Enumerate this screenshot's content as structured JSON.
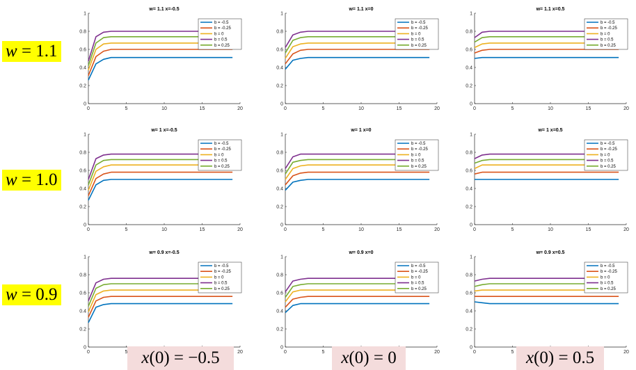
{
  "row_labels": [
    {
      "var": "w",
      "value": "1.1"
    },
    {
      "var": "w",
      "value": "1.0"
    },
    {
      "var": "w",
      "value": "0.9"
    }
  ],
  "col_labels": [
    {
      "var": "x",
      "arg": "0",
      "value": "−0.5"
    },
    {
      "var": "x",
      "arg": "0",
      "value": "0"
    },
    {
      "var": "x",
      "arg": "0",
      "value": "0.5"
    }
  ],
  "series_colors": {
    "b = -0.5": "#0072BD",
    "b = -0.25": "#D95319",
    "b = 0": "#EDB120",
    "b = 0.5": "#7E2F8E",
    "b = 0.25": "#77AC30"
  },
  "chart_data": [
    {
      "type": "line",
      "title": "w= 1.1 x=-0.5",
      "xlim": [
        0,
        20
      ],
      "ylim": [
        0,
        1
      ],
      "xticks": [
        "0",
        "5",
        "10",
        "15",
        "20"
      ],
      "yticks": [
        "0",
        "0.2",
        "0.4",
        "0.6",
        "0.8",
        "1"
      ],
      "x": [
        0,
        1,
        2,
        3,
        4,
        19
      ],
      "legend": "top-right",
      "series": [
        {
          "name": "b = -0.5",
          "values": [
            0.26,
            0.44,
            0.49,
            0.51,
            0.51,
            0.51
          ]
        },
        {
          "name": "b = -0.25",
          "values": [
            0.31,
            0.52,
            0.58,
            0.6,
            0.6,
            0.6
          ]
        },
        {
          "name": "b = 0",
          "values": [
            0.37,
            0.6,
            0.66,
            0.67,
            0.67,
            0.67
          ]
        },
        {
          "name": "b = 0.5",
          "values": [
            0.47,
            0.74,
            0.79,
            0.8,
            0.8,
            0.8
          ]
        },
        {
          "name": "b = 0.25",
          "values": [
            0.42,
            0.67,
            0.73,
            0.74,
            0.74,
            0.74
          ]
        }
      ]
    },
    {
      "type": "line",
      "title": "w= 1.1 x=0",
      "xlim": [
        0,
        20
      ],
      "ylim": [
        0,
        1
      ],
      "xticks": [
        "0",
        "5",
        "10",
        "15",
        "20"
      ],
      "yticks": [
        "0",
        "0.2",
        "0.4",
        "0.6",
        "0.8",
        "1"
      ],
      "x": [
        0,
        1,
        2,
        3,
        4,
        19
      ],
      "legend": "top-right",
      "series": [
        {
          "name": "b = -0.5",
          "values": [
            0.38,
            0.48,
            0.5,
            0.51,
            0.51,
            0.51
          ]
        },
        {
          "name": "b = -0.25",
          "values": [
            0.44,
            0.55,
            0.59,
            0.6,
            0.6,
            0.6
          ]
        },
        {
          "name": "b = 0",
          "values": [
            0.5,
            0.63,
            0.66,
            0.67,
            0.67,
            0.67
          ]
        },
        {
          "name": "b = 0.5",
          "values": [
            0.62,
            0.76,
            0.79,
            0.8,
            0.8,
            0.8
          ]
        },
        {
          "name": "b = 0.25",
          "values": [
            0.56,
            0.7,
            0.73,
            0.74,
            0.74,
            0.74
          ]
        }
      ]
    },
    {
      "type": "line",
      "title": "w= 1.1 x=0.5",
      "xlim": [
        0,
        20
      ],
      "ylim": [
        0,
        1
      ],
      "xticks": [
        "0",
        "5",
        "10",
        "15",
        "20"
      ],
      "yticks": [
        "0",
        "0.2",
        "0.4",
        "0.6",
        "0.8",
        "1"
      ],
      "x": [
        0,
        1,
        2,
        3,
        4,
        19
      ],
      "legend": "top-right",
      "series": [
        {
          "name": "b = -0.5",
          "values": [
            0.5,
            0.51,
            0.51,
            0.51,
            0.51,
            0.51
          ]
        },
        {
          "name": "b = -0.25",
          "values": [
            0.56,
            0.59,
            0.6,
            0.6,
            0.6,
            0.6
          ]
        },
        {
          "name": "b = 0",
          "values": [
            0.62,
            0.66,
            0.67,
            0.67,
            0.67,
            0.67
          ]
        },
        {
          "name": "b = 0.5",
          "values": [
            0.73,
            0.79,
            0.8,
            0.8,
            0.8,
            0.8
          ]
        },
        {
          "name": "b = 0.25",
          "values": [
            0.68,
            0.73,
            0.74,
            0.74,
            0.74,
            0.74
          ]
        }
      ]
    },
    {
      "type": "line",
      "title": "w= 1 x=-0.5",
      "xlim": [
        0,
        20
      ],
      "ylim": [
        0,
        1
      ],
      "xticks": [
        "0",
        "5",
        "10",
        "15",
        "20"
      ],
      "yticks": [
        "0",
        "0.2",
        "0.4",
        "0.6",
        "0.8",
        "1"
      ],
      "x": [
        0,
        1,
        2,
        3,
        4,
        19
      ],
      "legend": "top-right",
      "series": [
        {
          "name": "b = -0.5",
          "values": [
            0.27,
            0.44,
            0.49,
            0.5,
            0.5,
            0.5
          ]
        },
        {
          "name": "b = -0.25",
          "values": [
            0.32,
            0.51,
            0.56,
            0.58,
            0.58,
            0.58
          ]
        },
        {
          "name": "b = 0",
          "values": [
            0.38,
            0.59,
            0.64,
            0.66,
            0.66,
            0.66
          ]
        },
        {
          "name": "b = 0.5",
          "values": [
            0.5,
            0.73,
            0.77,
            0.78,
            0.78,
            0.78
          ]
        },
        {
          "name": "b = 0.25",
          "values": [
            0.44,
            0.66,
            0.71,
            0.72,
            0.72,
            0.72
          ]
        }
      ]
    },
    {
      "type": "line",
      "title": "w= 1 x=0",
      "xlim": [
        0,
        20
      ],
      "ylim": [
        0,
        1
      ],
      "xticks": [
        "0",
        "5",
        "10",
        "15",
        "20"
      ],
      "yticks": [
        "0",
        "0.2",
        "0.4",
        "0.6",
        "0.8",
        "1"
      ],
      "x": [
        0,
        1,
        2,
        3,
        4,
        19
      ],
      "legend": "top-right",
      "series": [
        {
          "name": "b = -0.5",
          "values": [
            0.38,
            0.47,
            0.49,
            0.5,
            0.5,
            0.5
          ]
        },
        {
          "name": "b = -0.25",
          "values": [
            0.44,
            0.54,
            0.57,
            0.58,
            0.58,
            0.58
          ]
        },
        {
          "name": "b = 0",
          "values": [
            0.5,
            0.62,
            0.65,
            0.66,
            0.66,
            0.66
          ]
        },
        {
          "name": "b = 0.5",
          "values": [
            0.62,
            0.75,
            0.78,
            0.78,
            0.78,
            0.78
          ]
        },
        {
          "name": "b = 0.25",
          "values": [
            0.56,
            0.69,
            0.71,
            0.72,
            0.72,
            0.72
          ]
        }
      ]
    },
    {
      "type": "line",
      "title": "w= 1 x=0.5",
      "xlim": [
        0,
        20
      ],
      "ylim": [
        0,
        1
      ],
      "xticks": [
        "0",
        "5",
        "10",
        "15",
        "20"
      ],
      "yticks": [
        "0",
        "0.2",
        "0.4",
        "0.6",
        "0.8",
        "1"
      ],
      "x": [
        0,
        1,
        2,
        3,
        4,
        19
      ],
      "legend": "top-right",
      "series": [
        {
          "name": "b = -0.5",
          "values": [
            0.5,
            0.5,
            0.5,
            0.5,
            0.5,
            0.5
          ]
        },
        {
          "name": "b = -0.25",
          "values": [
            0.56,
            0.58,
            0.58,
            0.58,
            0.58,
            0.58
          ]
        },
        {
          "name": "b = 0",
          "values": [
            0.62,
            0.66,
            0.66,
            0.66,
            0.66,
            0.66
          ]
        },
        {
          "name": "b = 0.5",
          "values": [
            0.73,
            0.77,
            0.78,
            0.78,
            0.78,
            0.78
          ]
        },
        {
          "name": "b = 0.25",
          "values": [
            0.68,
            0.71,
            0.72,
            0.72,
            0.72,
            0.72
          ]
        }
      ]
    },
    {
      "type": "line",
      "title": "w= 0.9 x=-0.5",
      "xlim": [
        0,
        20
      ],
      "ylim": [
        0,
        1
      ],
      "xticks": [
        "0",
        "5",
        "10",
        "15",
        "20"
      ],
      "yticks": [
        "0",
        "0.2",
        "0.4",
        "0.6",
        "0.8",
        "1"
      ],
      "x": [
        0,
        1,
        2,
        3,
        4,
        19
      ],
      "legend": "top-right",
      "series": [
        {
          "name": "b = -0.5",
          "values": [
            0.27,
            0.44,
            0.47,
            0.48,
            0.48,
            0.48
          ]
        },
        {
          "name": "b = -0.25",
          "values": [
            0.33,
            0.51,
            0.55,
            0.56,
            0.56,
            0.56
          ]
        },
        {
          "name": "b = 0",
          "values": [
            0.39,
            0.58,
            0.62,
            0.63,
            0.63,
            0.63
          ]
        },
        {
          "name": "b = 0.5",
          "values": [
            0.51,
            0.71,
            0.75,
            0.76,
            0.76,
            0.76
          ]
        },
        {
          "name": "b = 0.25",
          "values": [
            0.45,
            0.65,
            0.69,
            0.7,
            0.7,
            0.7
          ]
        }
      ]
    },
    {
      "type": "line",
      "title": "w= 0.9 x=0",
      "xlim": [
        0,
        20
      ],
      "ylim": [
        0,
        1
      ],
      "xticks": [
        "0",
        "5",
        "10",
        "15",
        "20"
      ],
      "yticks": [
        "0",
        "0.2",
        "0.4",
        "0.6",
        "0.8",
        "1"
      ],
      "x": [
        0,
        1,
        2,
        3,
        4,
        19
      ],
      "legend": "top-right",
      "series": [
        {
          "name": "b = -0.5",
          "values": [
            0.38,
            0.46,
            0.48,
            0.48,
            0.48,
            0.48
          ]
        },
        {
          "name": "b = -0.25",
          "values": [
            0.44,
            0.53,
            0.55,
            0.56,
            0.56,
            0.56
          ]
        },
        {
          "name": "b = 0",
          "values": [
            0.5,
            0.61,
            0.63,
            0.63,
            0.63,
            0.63
          ]
        },
        {
          "name": "b = 0.5",
          "values": [
            0.61,
            0.73,
            0.75,
            0.76,
            0.76,
            0.76
          ]
        },
        {
          "name": "b = 0.25",
          "values": [
            0.55,
            0.67,
            0.69,
            0.7,
            0.7,
            0.7
          ]
        }
      ]
    },
    {
      "type": "line",
      "title": "w= 0.9 x=0.5",
      "xlim": [
        0,
        20
      ],
      "ylim": [
        0,
        1
      ],
      "xticks": [
        "0",
        "5",
        "10",
        "15",
        "20"
      ],
      "yticks": [
        "0",
        "0.2",
        "0.4",
        "0.6",
        "0.8",
        "1"
      ],
      "x": [
        0,
        1,
        2,
        3,
        4,
        19
      ],
      "legend": "top-right",
      "series": [
        {
          "name": "b = -0.5",
          "values": [
            0.5,
            0.49,
            0.48,
            0.48,
            0.48,
            0.48
          ]
        },
        {
          "name": "b = -0.25",
          "values": [
            0.56,
            0.56,
            0.56,
            0.56,
            0.56,
            0.56
          ]
        },
        {
          "name": "b = 0",
          "values": [
            0.62,
            0.63,
            0.63,
            0.63,
            0.63,
            0.63
          ]
        },
        {
          "name": "b = 0.5",
          "values": [
            0.73,
            0.75,
            0.76,
            0.76,
            0.76,
            0.76
          ]
        },
        {
          "name": "b = 0.25",
          "values": [
            0.67,
            0.69,
            0.7,
            0.7,
            0.7,
            0.7
          ]
        }
      ]
    }
  ]
}
